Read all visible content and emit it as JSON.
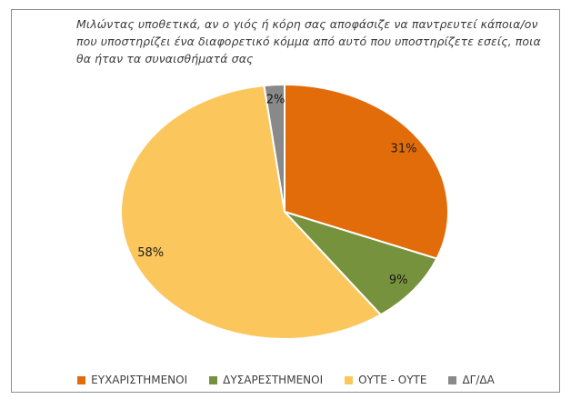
{
  "frame": {
    "border_color": "#8E8E8E",
    "background_color": "#FFFFFF"
  },
  "header": {
    "title_lines": [
      "Μιλώντας υποθετικά, αν ο γιός ή κόρη σας αποφάσιζε να παντρευτεί κάποια/ον",
      "που υποστηρίζει ένα διαφορετικό κόμμα από αυτό που υποστηρίζετε εσείς, ποια",
      "θα ήταν τα συναισθήματά σας"
    ],
    "title_color": "#3B3B3B"
  },
  "chart_data": {
    "type": "pie",
    "title": "Μιλώντας υποθετικά, αν ο γιός ή κόρη σας αποφάσιζε να παντρευτεί κάποια/ον που υποστηρίζει ένα διαφορετικό κόμμα από αυτό που υποστηρίζετε εσείς, ποια θα ήταν τα συναισθήματά σας",
    "units": "percent",
    "direction": "clockwise",
    "start_angle_deg": 0,
    "legend_position": "bottom",
    "slice_border_color": "#FFFFFF",
    "data_label_color": "#1A1A1A",
    "slices": [
      {
        "label": "ΕΥΧΑΡΙΣΤΗΜΕΝΟΙ",
        "value": 31,
        "data_label": "31%",
        "color": "#E36C0A"
      },
      {
        "label": "ΔΥΣΑΡΕΣΤΗΜΕΝΟΙ",
        "value": 9,
        "data_label": "9%",
        "color": "#76923C"
      },
      {
        "label": "ΟΥΤΕ - ΟΥΤΕ",
        "value": 58,
        "data_label": "58%",
        "color": "#FBC75D"
      },
      {
        "label": "ΔΓ/ΔΑ",
        "value": 2,
        "data_label": "2%",
        "color": "#898989"
      }
    ]
  }
}
